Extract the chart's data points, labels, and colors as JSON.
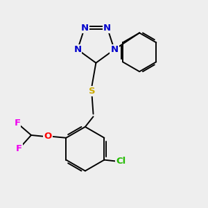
{
  "background_color": "#eeeeee",
  "bond_color": "#000000",
  "atom_colors": {
    "N": "#0000cc",
    "S": "#ccaa00",
    "O": "#ff0000",
    "F": "#ee00ee",
    "Cl": "#22bb00",
    "C": "#000000"
  },
  "font_size": 9.5,
  "lw": 1.4
}
